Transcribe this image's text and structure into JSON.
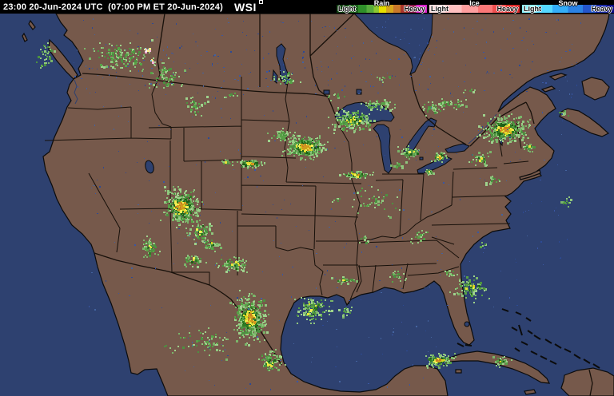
{
  "header": {
    "timestamp_utc": "23:00 20-Jun-2024 UTC",
    "timestamp_local": "(07:00 PM ET 20-Jun-2024)",
    "logo_text": "WSI",
    "logo_mark": ""
  },
  "legend": {
    "rain": {
      "title": "Rain",
      "light_label": "Light",
      "heavy_label": "Heavy",
      "stops": [
        [
          "#0e3d0e",
          0
        ],
        [
          "#1e621e",
          12
        ],
        [
          "#2f8f2a",
          24
        ],
        [
          "#57ab3c",
          33
        ],
        [
          "#8cc832",
          41
        ],
        [
          "#e8e000",
          47
        ],
        [
          "#d6a61e",
          55
        ],
        [
          "#c9782a",
          63
        ],
        [
          "#a8352a",
          71
        ],
        [
          "#8c1a4a",
          79
        ],
        [
          "#d622c8",
          88
        ],
        [
          "#ff3cff",
          100
        ]
      ]
    },
    "ice": {
      "title": "Ice",
      "light_label": "Light",
      "heavy_label": "Heavy",
      "stops": [
        [
          "#ffdcdc",
          0
        ],
        [
          "#ffc0c0",
          18
        ],
        [
          "#ff9e9e",
          36
        ],
        [
          "#fb7878",
          54
        ],
        [
          "#ee5050",
          70
        ],
        [
          "#dc2828",
          85
        ],
        [
          "#c81414",
          100
        ]
      ]
    },
    "snow": {
      "title": "Snow",
      "light_label": "Light",
      "heavy_label": "Heavy",
      "stops": [
        [
          "#8af4ff",
          0
        ],
        [
          "#55d8ff",
          16
        ],
        [
          "#34aef8",
          33
        ],
        [
          "#2b82e4",
          50
        ],
        [
          "#2456cc",
          66
        ],
        [
          "#1b2ca8",
          80
        ],
        [
          "#0a0a82",
          92
        ],
        [
          "#000070",
          100
        ]
      ]
    }
  },
  "map": {
    "colors": {
      "ocean": "#2e4170",
      "land": "#76594b",
      "coast_outline": "#0b0b0b",
      "border": "#17100a",
      "lake": "#2e4170"
    },
    "radar": {
      "palette": {
        "light": [
          "#8fc67d",
          "#7ab569",
          "#9ed28c"
        ],
        "mid": [
          "#57a246",
          "#4c9140"
        ],
        "dark": [
          "#2e7a22",
          "#1e5f18"
        ],
        "yellow": [
          "#e8e23a",
          "#f2ef55",
          "#d8d420"
        ],
        "gold": [
          "#d19a1e",
          "#c97f22"
        ],
        "hail": [
          "#f4fdf8",
          "#8fd8e0",
          "#f0b0d8",
          "#ffe98a"
        ],
        "water_noise": [
          "#3a57a3",
          "#2d4a94",
          "#44639f"
        ]
      },
      "clusters": [
        [
          55,
          72,
          34,
          44,
          0.1,
          0
        ],
        [
          60,
          58,
          20,
          18,
          0.12,
          0
        ],
        [
          150,
          70,
          100,
          55,
          0.14,
          0
        ],
        [
          183,
          62,
          14,
          10,
          0.55,
          3
        ],
        [
          190,
          74,
          10,
          8,
          0.5,
          3
        ],
        [
          205,
          95,
          60,
          50,
          0.12,
          0
        ],
        [
          243,
          132,
          50,
          34,
          0.1,
          0
        ],
        [
          288,
          120,
          30,
          16,
          0.08,
          0
        ],
        [
          226,
          258,
          62,
          64,
          0.55,
          2
        ],
        [
          250,
          290,
          40,
          40,
          0.25,
          1
        ],
        [
          187,
          310,
          30,
          36,
          0.3,
          1
        ],
        [
          240,
          325,
          44,
          26,
          0.18,
          1
        ],
        [
          312,
          204,
          56,
          16,
          0.45,
          2
        ],
        [
          281,
          202,
          22,
          12,
          0.3,
          1
        ],
        [
          380,
          183,
          66,
          38,
          0.85,
          2
        ],
        [
          352,
          170,
          40,
          24,
          0.3,
          0
        ],
        [
          440,
          150,
          76,
          42,
          0.4,
          1
        ],
        [
          470,
          130,
          60,
          20,
          0.25,
          0
        ],
        [
          420,
          120,
          30,
          12,
          0.15,
          0
        ],
        [
          444,
          218,
          58,
          14,
          0.4,
          2
        ],
        [
          420,
          250,
          20,
          12,
          0.15,
          0
        ],
        [
          428,
          350,
          44,
          14,
          0.25,
          1
        ],
        [
          455,
          300,
          30,
          14,
          0.12,
          0
        ],
        [
          512,
          190,
          42,
          26,
          0.3,
          1
        ],
        [
          549,
          196,
          26,
          20,
          0.4,
          2
        ],
        [
          536,
          214,
          24,
          12,
          0.3,
          1
        ],
        [
          540,
          135,
          44,
          26,
          0.18,
          0
        ],
        [
          497,
          205,
          24,
          14,
          0.2,
          0
        ],
        [
          560,
          129,
          70,
          16,
          0.2,
          0
        ],
        [
          586,
          112,
          30,
          12,
          0.12,
          0
        ],
        [
          630,
          162,
          78,
          46,
          0.55,
          2
        ],
        [
          660,
          184,
          30,
          14,
          0.3,
          1
        ],
        [
          600,
          198,
          40,
          26,
          0.2,
          1
        ],
        [
          616,
          225,
          30,
          18,
          0.15,
          0
        ],
        [
          525,
          295,
          44,
          22,
          0.12,
          0
        ],
        [
          603,
          306,
          22,
          12,
          0.12,
          0
        ],
        [
          496,
          345,
          40,
          22,
          0.12,
          0
        ],
        [
          292,
          330,
          58,
          26,
          0.28,
          1
        ],
        [
          262,
          305,
          40,
          24,
          0.2,
          1
        ],
        [
          312,
          398,
          58,
          82,
          0.5,
          2
        ],
        [
          338,
          452,
          44,
          36,
          0.35,
          1
        ],
        [
          390,
          386,
          62,
          48,
          0.22,
          1
        ],
        [
          432,
          390,
          30,
          16,
          0.18,
          0
        ],
        [
          588,
          360,
          64,
          42,
          0.18,
          1
        ],
        [
          560,
          342,
          30,
          16,
          0.12,
          0
        ],
        [
          547,
          450,
          58,
          22,
          0.5,
          2
        ],
        [
          626,
          452,
          32,
          16,
          0.35,
          1
        ],
        [
          355,
          98,
          44,
          28,
          0.14,
          0
        ],
        [
          480,
          98,
          34,
          18,
          0.08,
          0
        ],
        [
          706,
          252,
          26,
          22,
          0.14,
          0
        ],
        [
          704,
          140,
          24,
          14,
          0.2,
          0
        ],
        [
          470,
          250,
          120,
          60,
          0.03,
          0
        ],
        [
          250,
          430,
          150,
          60,
          0.04,
          0
        ]
      ],
      "noise": [
        [
          86,
          22,
          640,
          100,
          300
        ],
        [
          110,
          130,
          600,
          260,
          230
        ],
        [
          230,
          400,
          330,
          90,
          60
        ]
      ]
    }
  }
}
